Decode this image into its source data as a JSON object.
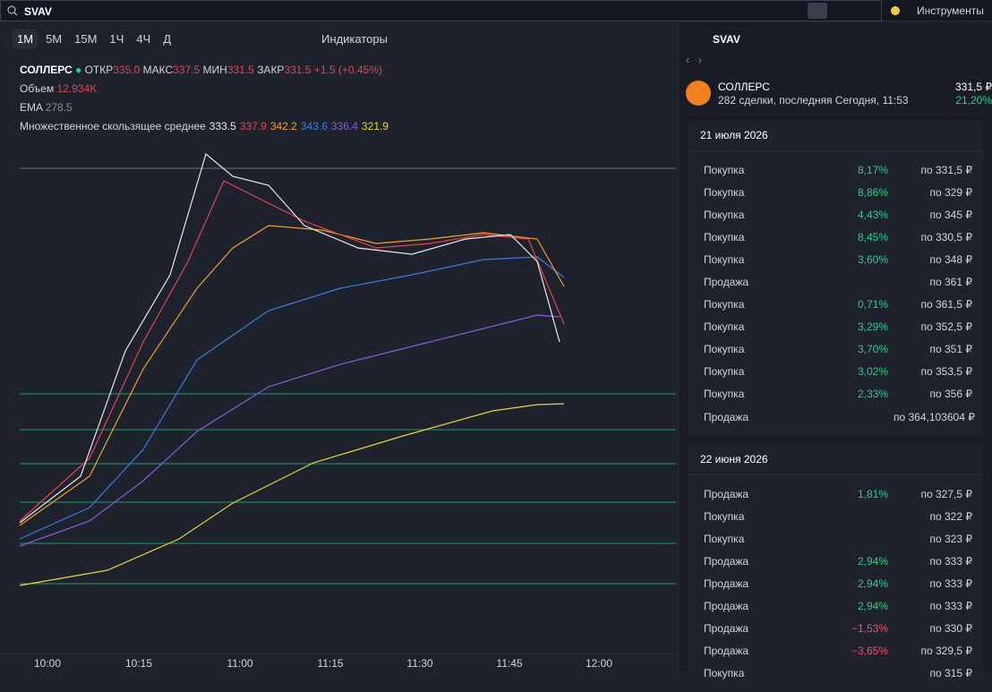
{
  "search": {
    "query": "SVAV"
  },
  "top_bar": {
    "tools": "Инструменты"
  },
  "toolbar": {
    "intervals": [
      "1M",
      "5M",
      "15M",
      "1Ч",
      "4Ч",
      "Д"
    ],
    "indicators": "Индикаторы"
  },
  "legend": {
    "ticker": "СОЛЛЕРС",
    "open_label": "ОТКР",
    "open": "335.0",
    "high_label": "МАКС",
    "high": "337.5",
    "low_label": "МИН",
    "low": "331.5",
    "close_label": "ЗАКР",
    "close": "331.5",
    "change": "+1.5 (+0.45%)",
    "volume_label": "Объем",
    "volume": "12.934K",
    "ema_label": "EMA",
    "ema": "278.5",
    "ma_label": "Множественное скользящее среднее",
    "ma_values": [
      {
        "text": "333.5",
        "color": "#e8e8e8"
      },
      {
        "text": "337.9",
        "color": "#e0454f"
      },
      {
        "text": "342.2",
        "color": "#f0a030"
      },
      {
        "text": "343.6",
        "color": "#3d7be8"
      },
      {
        "text": "336.4",
        "color": "#8a5ad8"
      },
      {
        "text": "321.9",
        "color": "#e8d43a"
      }
    ]
  },
  "x_axis": [
    "10:00",
    "10:15",
    "11:00",
    "11:15",
    "11:30",
    "11:45",
    "12:00"
  ],
  "panel": {
    "search": "SVAV",
    "name": "СОЛЛЕРС",
    "subtitle": "282 сделки, последняя Сегодня, 11:53",
    "price": "331,5 ₽",
    "change": "21,20%",
    "groups": [
      {
        "date": "21 июля 2026",
        "trades": [
          {
            "side": "Покупка",
            "pct": "8,17%",
            "price": "по 331,5 ₽"
          },
          {
            "side": "Покупка",
            "pct": "8,86%",
            "price": "по 329 ₽"
          },
          {
            "side": "Покупка",
            "pct": "4,43%",
            "price": "по 345 ₽"
          },
          {
            "side": "Покупка",
            "pct": "8,45%",
            "price": "по 330,5 ₽"
          },
          {
            "side": "Покупка",
            "pct": "3,60%",
            "price": "по 348 ₽"
          },
          {
            "side": "Продажа",
            "price": "по 361 ₽"
          },
          {
            "side": "Покупка",
            "pct": "0,71%",
            "price": "по 361,5 ₽"
          },
          {
            "side": "Покупка",
            "pct": "3,29%",
            "price": "по 352,5 ₽"
          },
          {
            "side": "Покупка",
            "pct": "3,70%",
            "price": "по 351 ₽"
          },
          {
            "side": "Покупка",
            "pct": "3,02%",
            "price": "по 353,5 ₽"
          },
          {
            "side": "Покупка",
            "pct": "2,33%",
            "price": "по 356 ₽"
          },
          {
            "side": "Продажа",
            "price": "по 364,103604 ₽"
          }
        ]
      },
      {
        "date": "22 июня 2026",
        "trades": [
          {
            "side": "Продажа",
            "pct": "1,81%",
            "price": "по 327,5 ₽"
          },
          {
            "side": "Покупка",
            "price": "по 322 ₽"
          },
          {
            "side": "Покупка",
            "price": "по 323 ₽"
          },
          {
            "side": "Продажа",
            "pct": "2,94%",
            "price": "по 333 ₽"
          },
          {
            "side": "Продажа",
            "pct": "2,94%",
            "price": "по 333 ₽"
          },
          {
            "side": "Продажа",
            "pct": "2,94%",
            "price": "по 333 ₽"
          },
          {
            "side": "Продажа",
            "pct": "−1,53%",
            "pct_color": "#f0506e",
            "price": "по 330 ₽"
          },
          {
            "side": "Продажа",
            "pct": "−3,65%",
            "pct_color": "#f0506e",
            "price": "по 329,5 ₽"
          },
          {
            "side": "Покупка",
            "price": "по 315 ₽"
          }
        ]
      }
    ]
  }
}
